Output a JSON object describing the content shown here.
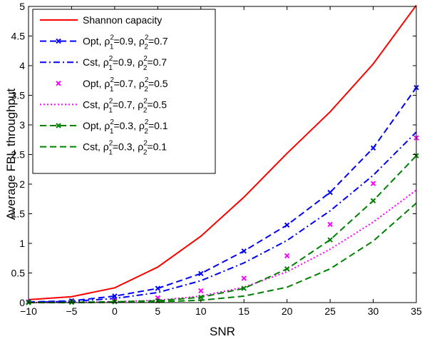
{
  "chart_data": {
    "type": "line",
    "title": "",
    "xlabel": "SNR",
    "ylabel": "Average FBL throughput",
    "xlim": [
      -10,
      35
    ],
    "ylim": [
      0,
      5
    ],
    "xticks": [
      -10,
      -5,
      0,
      5,
      10,
      15,
      20,
      25,
      30,
      35
    ],
    "yticks": [
      0,
      0.5,
      1,
      1.5,
      2,
      2.5,
      3,
      3.5,
      4,
      4.5,
      5
    ],
    "grid": false,
    "legend_position": "top-left",
    "x": [
      -10,
      -5,
      0,
      5,
      10,
      15,
      20,
      25,
      30,
      35
    ],
    "series": [
      {
        "name": "Shannon capacity",
        "color": "#ff0000",
        "line": "solid",
        "marker": "none",
        "values": [
          0.05,
          0.1,
          0.25,
          0.6,
          1.12,
          1.78,
          2.52,
          3.22,
          4.03,
          5.02
        ]
      },
      {
        "name": "Opt, ρ₁²=0.9, ρ₂²=0.7",
        "color": "#0000ff",
        "line": "dashed",
        "marker": "x",
        "values": [
          0.01,
          0.03,
          0.11,
          0.24,
          0.49,
          0.87,
          1.31,
          1.86,
          2.61,
          3.63
        ]
      },
      {
        "name": "Cst, ρ₁²=0.9, ρ₂²=0.7",
        "color": "#0000ff",
        "line": "dashdot",
        "marker": "none",
        "values": [
          0.005,
          0.02,
          0.07,
          0.17,
          0.37,
          0.67,
          1.05,
          1.55,
          2.15,
          2.88
        ]
      },
      {
        "name": "Opt, ρ₁²=0.7, ρ₂²=0.5",
        "color": "#ff00ff",
        "line": "none",
        "marker": "x",
        "values": [
          0.0,
          0.01,
          0.03,
          0.08,
          0.2,
          0.41,
          0.79,
          1.32,
          2.01,
          2.78
        ]
      },
      {
        "name": "Cst, ρ₁²=0.7, ρ₂²=0.5",
        "color": "#ff00ff",
        "line": "dotted",
        "marker": "none",
        "values": [
          0.0,
          0.005,
          0.015,
          0.04,
          0.11,
          0.26,
          0.52,
          0.9,
          1.36,
          1.9
        ]
      },
      {
        "name": "Opt, ρ₁²=0.3, ρ₂²=0.1",
        "color": "#008000",
        "line": "dashed",
        "marker": "x",
        "values": [
          0.0,
          0.005,
          0.015,
          0.03,
          0.09,
          0.24,
          0.57,
          1.06,
          1.72,
          2.48
        ]
      },
      {
        "name": "Cst, ρ₁²=0.3, ρ₂²=0.1",
        "color": "#008000",
        "line": "dashed",
        "marker": "none",
        "values": [
          0.0,
          0.0,
          0.005,
          0.015,
          0.04,
          0.11,
          0.26,
          0.57,
          1.04,
          1.68
        ]
      }
    ],
    "legend_labels": [
      {
        "main": "Shannon capacity",
        "sub": []
      },
      {
        "main": "Opt, ρ",
        "sub": [
          "1",
          "=0.9, ρ",
          "2",
          "=0.7"
        ]
      },
      {
        "main": "Cst, ρ",
        "sub": [
          "1",
          "=0.9, ρ",
          "2",
          "=0.7"
        ]
      },
      {
        "main": "Opt, ρ",
        "sub": [
          "1",
          "=0.7, ρ",
          "2",
          "=0.5"
        ]
      },
      {
        "main": "Cst, ρ",
        "sub": [
          "1",
          "=0.7, ρ",
          "2",
          "=0.5"
        ]
      },
      {
        "main": "Opt, ρ",
        "sub": [
          "1",
          "=0.3, ρ",
          "2",
          "=0.1"
        ]
      },
      {
        "main": "Cst, ρ",
        "sub": [
          "1",
          "=0.3, ρ",
          "2",
          "=0.1"
        ]
      }
    ]
  }
}
